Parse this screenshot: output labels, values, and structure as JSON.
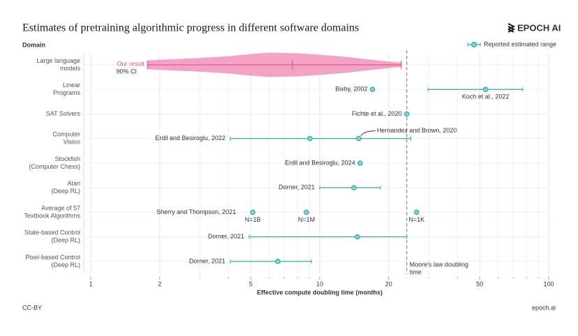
{
  "chart_data": {
    "type": "range-dot",
    "title": "Estimates of pretraining algorithmic progress in different software domains",
    "brand": "EPOCH AI",
    "y_axis_label": "Domain",
    "x_axis_label": "Effective compute doubling time (months)",
    "legend": {
      "label": "Reported estimated range",
      "corner": "top-right"
    },
    "footer_left": "CC-BY",
    "footer_right": "epoch.ai",
    "log_x": true,
    "grid": true,
    "color": "#3aa6a6",
    "xlim": [
      1,
      100
    ],
    "xticks": [
      1,
      2,
      5,
      10,
      20,
      50,
      100
    ],
    "minor_xticks": [
      3,
      4,
      6,
      7,
      8,
      9,
      30,
      40,
      60,
      70,
      80,
      90
    ],
    "categories": [
      [
        "Large language",
        "models"
      ],
      [
        "Linear",
        "Programs"
      ],
      [
        "SAT Solvers"
      ],
      [
        "Computer",
        "Vision"
      ],
      [
        "Stockfish",
        "(Computer Chess)"
      ],
      [
        "Atari",
        "(Deep RL)"
      ],
      [
        "Average of 57",
        "Textbook Algorithms"
      ],
      [
        "State-based Control",
        "(Deep RL)"
      ],
      [
        "Pixel-based Control",
        "(Deep RL)"
      ]
    ],
    "violin": {
      "category": 0,
      "label": "Our result",
      "ci_label": "90% CI",
      "color": "#f4a3c4",
      "line_color": "#e0559a",
      "ci": [
        1.77,
        22.7
      ],
      "median": 7.6,
      "x": [
        1.77,
        2,
        3,
        4,
        5,
        6,
        8,
        10,
        13,
        16,
        20,
        22.7
      ],
      "density": [
        0.35,
        0.4,
        0.55,
        0.7,
        0.88,
        1,
        0.95,
        0.82,
        0.65,
        0.45,
        0.25,
        0.15
      ]
    },
    "estimates": [
      {
        "name": "Bixby, 2002",
        "category": 1,
        "value": 17
      },
      {
        "name": "Koch et al., 2022",
        "category": 1,
        "value": 53,
        "range": [
          29.7,
          77
        ]
      },
      {
        "name": "Fichte et al., 2020",
        "category": 2,
        "value": 24
      },
      {
        "name": "Erdil and Besiroglu, 2022",
        "category": 3,
        "value": 9.06,
        "range": [
          4.07,
          25
        ]
      },
      {
        "name": "Hernandez and Brown, 2020",
        "category": 3,
        "value": 14.8
      },
      {
        "name": "Erdil and Besiroglu, 2024",
        "category": 4,
        "value": 15
      },
      {
        "name": "Dorner, 2021",
        "category": 5,
        "value": 14.1,
        "range": [
          10,
          18.4
        ]
      },
      {
        "name": "Sherry and Thompson, 2021",
        "category": 6,
        "points": [
          {
            "label": "N=1B",
            "value": 5.1
          },
          {
            "label": "N=1M",
            "value": 8.75
          },
          {
            "label": "N=1K",
            "value": 26.5
          }
        ]
      },
      {
        "name": "Dorner, 2021",
        "category": 7,
        "value": 14.6,
        "range": [
          4.92,
          24
        ]
      },
      {
        "name": "Dorner, 2021",
        "category": 8,
        "value": 6.56,
        "range": [
          4.07,
          9.19
        ]
      }
    ],
    "reference_line": {
      "value": 24,
      "label": [
        "Moore's law doubling",
        "time"
      ]
    }
  }
}
